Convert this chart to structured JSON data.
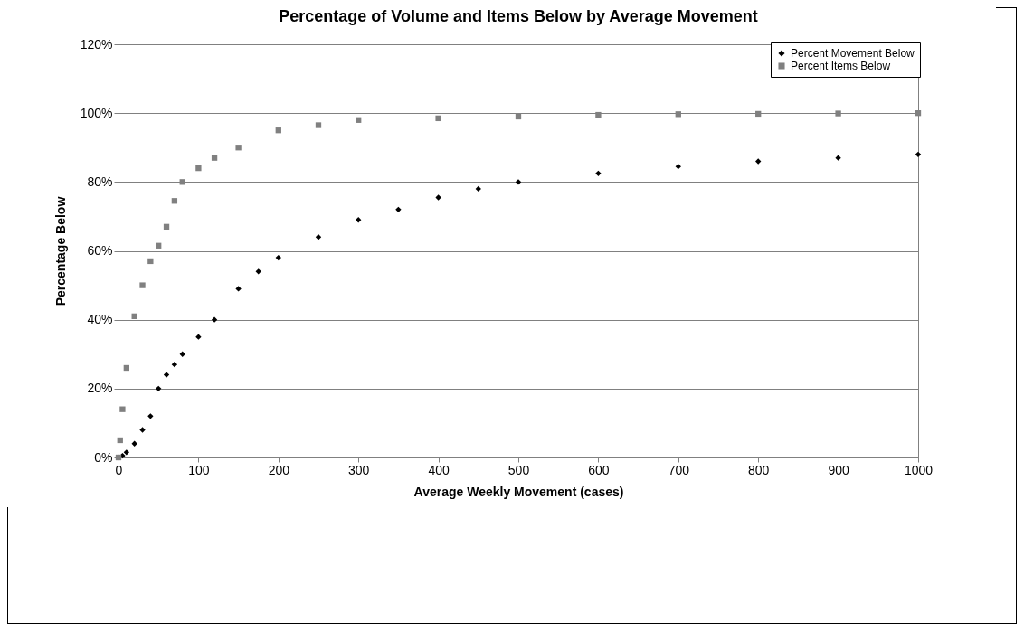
{
  "chart_data": {
    "type": "scatter",
    "title": "Percentage of Volume and Items Below by Average Movement",
    "xlabel": "Average Weekly Movement (cases)",
    "ylabel": "Percentage Below",
    "xlim": [
      0,
      1000
    ],
    "xticks": [
      0,
      100,
      200,
      300,
      400,
      500,
      600,
      700,
      800,
      900,
      1000
    ],
    "ylim": [
      0,
      120
    ],
    "yticks": [
      {
        "value": 0,
        "label": "0%"
      },
      {
        "value": 20,
        "label": "20%"
      },
      {
        "value": 40,
        "label": "40%"
      },
      {
        "value": 60,
        "label": "60%"
      },
      {
        "value": 80,
        "label": "80%"
      },
      {
        "value": 100,
        "label": "100%"
      },
      {
        "value": 120,
        "label": "120%"
      }
    ],
    "grid": "y",
    "legend": "top right",
    "series": [
      {
        "name": "Percent Movement Below",
        "color": "#000000",
        "marker": "diamond",
        "x": [
          0,
          5,
          10,
          20,
          30,
          40,
          50,
          60,
          70,
          80,
          100,
          120,
          150,
          175,
          200,
          250,
          300,
          350,
          400,
          450,
          500,
          600,
          700,
          800,
          900,
          1000
        ],
        "values": [
          0,
          0.5,
          1.5,
          4,
          8,
          12,
          20,
          24,
          27,
          30,
          35,
          40,
          49,
          54,
          58,
          64,
          69,
          72,
          75.5,
          78,
          80,
          82.5,
          84.5,
          86,
          87,
          88
        ]
      },
      {
        "name": "Percent Items Below",
        "color": "#808080",
        "marker": "square",
        "x": [
          0,
          2,
          5,
          10,
          20,
          30,
          40,
          50,
          60,
          70,
          80,
          100,
          120,
          150,
          200,
          250,
          300,
          400,
          500,
          600,
          700,
          800,
          900,
          1000
        ],
        "values": [
          0,
          5,
          14,
          26,
          41,
          50,
          57,
          61.5,
          67,
          74.5,
          80,
          84,
          87,
          90,
          95,
          96.5,
          98,
          98.5,
          99,
          99.5,
          99.7,
          99.8,
          99.9,
          100
        ]
      }
    ]
  }
}
